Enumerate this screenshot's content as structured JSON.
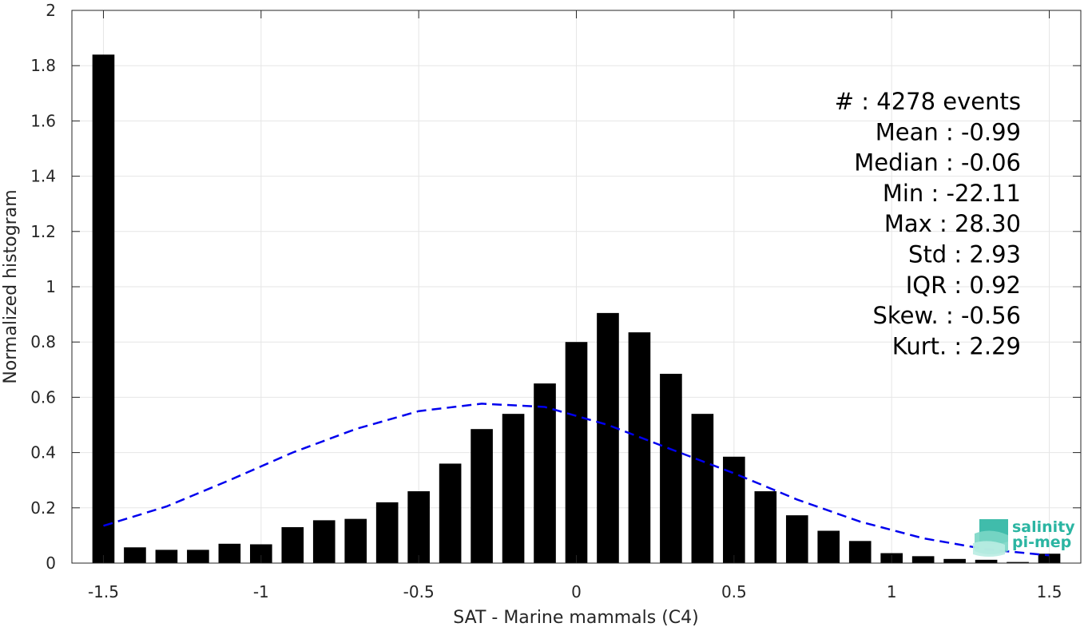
{
  "chart_data": {
    "type": "bar",
    "xlabel": "SAT - Marine mammals (C4)",
    "ylabel": "Normalized histogram",
    "xlim": [
      -1.6,
      1.6
    ],
    "ylim": [
      0,
      2
    ],
    "xticks": [
      "-1.5",
      "-1",
      "-0.5",
      "0",
      "0.5",
      "1",
      "1.5"
    ],
    "xtick_values": [
      -1.5,
      -1,
      -0.5,
      0,
      0.5,
      1,
      1.5
    ],
    "yticks": [
      "0",
      "0.2",
      "0.4",
      "0.6",
      "0.8",
      "1",
      "1.2",
      "1.4",
      "1.6",
      "1.8",
      "2"
    ],
    "ytick_values": [
      0,
      0.2,
      0.4,
      0.6,
      0.8,
      1,
      1.2,
      1.4,
      1.6,
      1.8,
      2
    ],
    "grid": true,
    "bar_color": "#000000",
    "bin_width": 0.1,
    "bar_width_fraction": 0.7,
    "bins": [
      {
        "x": -1.5,
        "value": 1.84
      },
      {
        "x": -1.4,
        "value": 0.057
      },
      {
        "x": -1.3,
        "value": 0.048
      },
      {
        "x": -1.2,
        "value": 0.048
      },
      {
        "x": -1.1,
        "value": 0.07
      },
      {
        "x": -1.0,
        "value": 0.068
      },
      {
        "x": -0.9,
        "value": 0.13
      },
      {
        "x": -0.8,
        "value": 0.155
      },
      {
        "x": -0.7,
        "value": 0.16
      },
      {
        "x": -0.6,
        "value": 0.22
      },
      {
        "x": -0.5,
        "value": 0.26
      },
      {
        "x": -0.4,
        "value": 0.36
      },
      {
        "x": -0.3,
        "value": 0.485
      },
      {
        "x": -0.2,
        "value": 0.54
      },
      {
        "x": -0.1,
        "value": 0.65
      },
      {
        "x": 0.0,
        "value": 0.8
      },
      {
        "x": 0.1,
        "value": 0.905
      },
      {
        "x": 0.2,
        "value": 0.835
      },
      {
        "x": 0.3,
        "value": 0.685
      },
      {
        "x": 0.4,
        "value": 0.54
      },
      {
        "x": 0.5,
        "value": 0.385
      },
      {
        "x": 0.6,
        "value": 0.26
      },
      {
        "x": 0.7,
        "value": 0.173
      },
      {
        "x": 0.8,
        "value": 0.117
      },
      {
        "x": 0.9,
        "value": 0.08
      },
      {
        "x": 1.0,
        "value": 0.036
      },
      {
        "x": 1.1,
        "value": 0.025
      },
      {
        "x": 1.2,
        "value": 0.015
      },
      {
        "x": 1.3,
        "value": 0.012
      },
      {
        "x": 1.4,
        "value": 0.004
      },
      {
        "x": 1.5,
        "value": 0.034
      }
    ],
    "fit_curve": {
      "style": "dashed",
      "color": "#0000ee",
      "points": [
        {
          "x": -1.5,
          "y": 0.135
        },
        {
          "x": -1.3,
          "y": 0.205
        },
        {
          "x": -1.1,
          "y": 0.3
        },
        {
          "x": -0.9,
          "y": 0.4
        },
        {
          "x": -0.7,
          "y": 0.485
        },
        {
          "x": -0.5,
          "y": 0.55
        },
        {
          "x": -0.3,
          "y": 0.577
        },
        {
          "x": -0.1,
          "y": 0.565
        },
        {
          "x": 0.1,
          "y": 0.5
        },
        {
          "x": 0.3,
          "y": 0.412
        },
        {
          "x": 0.5,
          "y": 0.325
        },
        {
          "x": 0.7,
          "y": 0.23
        },
        {
          "x": 0.9,
          "y": 0.15
        },
        {
          "x": 1.1,
          "y": 0.09
        },
        {
          "x": 1.3,
          "y": 0.05
        },
        {
          "x": 1.5,
          "y": 0.028
        }
      ]
    },
    "annotations": [
      "#  : 4278 events",
      "Mean : -0.99",
      "Median : -0.06",
      "Min : -22.11",
      "Max : 28.30",
      "Std : 2.93",
      "IQR : 0.92",
      "Skew. : -0.56",
      "Kurt. : 2.29"
    ]
  },
  "logo": {
    "line1": "salinity",
    "line2": "pi-mep",
    "color": "#2bb5a2"
  }
}
